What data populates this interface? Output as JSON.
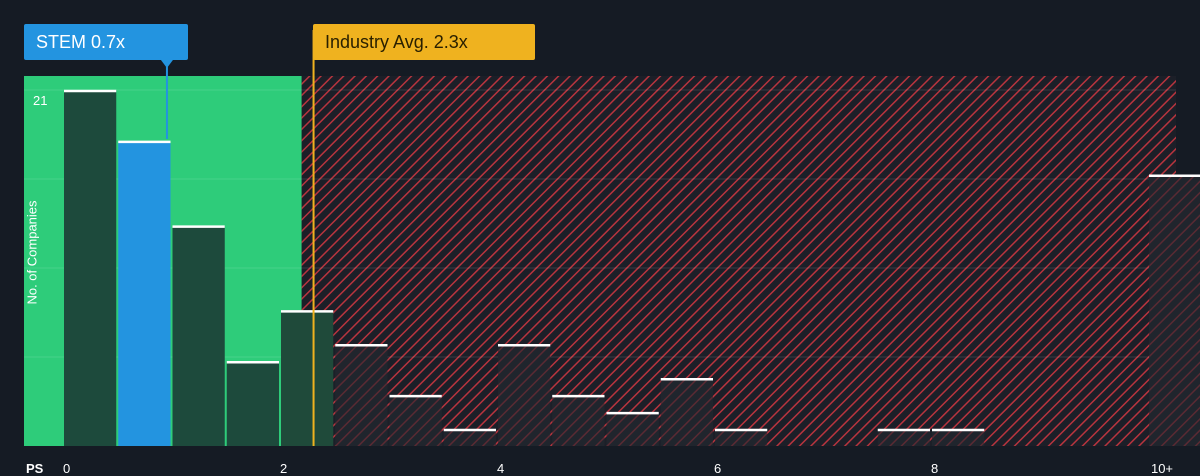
{
  "chart_data": {
    "type": "bar",
    "metric": "PS",
    "company": {
      "ticker": "STEM",
      "value": 0.7,
      "label": "STEM 0.7x",
      "color": "#2394e0"
    },
    "industry": {
      "value": 2.3,
      "label": "Industry Avg. 2.3x",
      "color": "#efb21f"
    },
    "fair_zone": {
      "from": 0,
      "to": 2.2,
      "color": "#2ecc7a"
    },
    "overvalued_zone": {
      "from": 2.2,
      "to": 10.2,
      "color": "#d33a45"
    },
    "ylabel": "No. of Companies",
    "ymax_label": "21",
    "ylim": [
      0,
      21
    ],
    "x_ticks": [
      {
        "value": 0,
        "label": "0"
      },
      {
        "value": 2,
        "label": "2"
      },
      {
        "value": 4,
        "label": "4"
      },
      {
        "value": 6,
        "label": "6"
      },
      {
        "value": 8,
        "label": "8"
      },
      {
        "value": 10.2,
        "label": "10+"
      }
    ],
    "bins": [
      {
        "x0": 0.0,
        "x1": 0.5,
        "value": 21
      },
      {
        "x0": 0.5,
        "x1": 1.0,
        "value": 18,
        "highlight": true
      },
      {
        "x0": 1.0,
        "x1": 1.5,
        "value": 13
      },
      {
        "x0": 1.5,
        "x1": 2.0,
        "value": 5
      },
      {
        "x0": 2.0,
        "x1": 2.5,
        "value": 8
      },
      {
        "x0": 2.5,
        "x1": 3.0,
        "value": 6
      },
      {
        "x0": 3.0,
        "x1": 3.5,
        "value": 3
      },
      {
        "x0": 3.5,
        "x1": 4.0,
        "value": 1
      },
      {
        "x0": 4.0,
        "x1": 4.5,
        "value": 6
      },
      {
        "x0": 4.5,
        "x1": 5.0,
        "value": 3
      },
      {
        "x0": 5.0,
        "x1": 5.5,
        "value": 2
      },
      {
        "x0": 5.5,
        "x1": 6.0,
        "value": 4
      },
      {
        "x0": 6.0,
        "x1": 6.5,
        "value": 1
      },
      {
        "x0": 6.5,
        "x1": 7.0,
        "value": 0
      },
      {
        "x0": 7.0,
        "x1": 7.5,
        "value": 0
      },
      {
        "x0": 7.5,
        "x1": 8.0,
        "value": 1
      },
      {
        "x0": 8.0,
        "x1": 8.5,
        "value": 1
      },
      {
        "x0": 8.5,
        "x1": 9.0,
        "value": 0
      },
      {
        "x0": 9.0,
        "x1": 9.5,
        "value": 0
      },
      {
        "x0": 9.5,
        "x1": 10.0,
        "value": 0
      },
      {
        "x0": 10.0,
        "x1": 10.5,
        "value": 16
      }
    ]
  }
}
